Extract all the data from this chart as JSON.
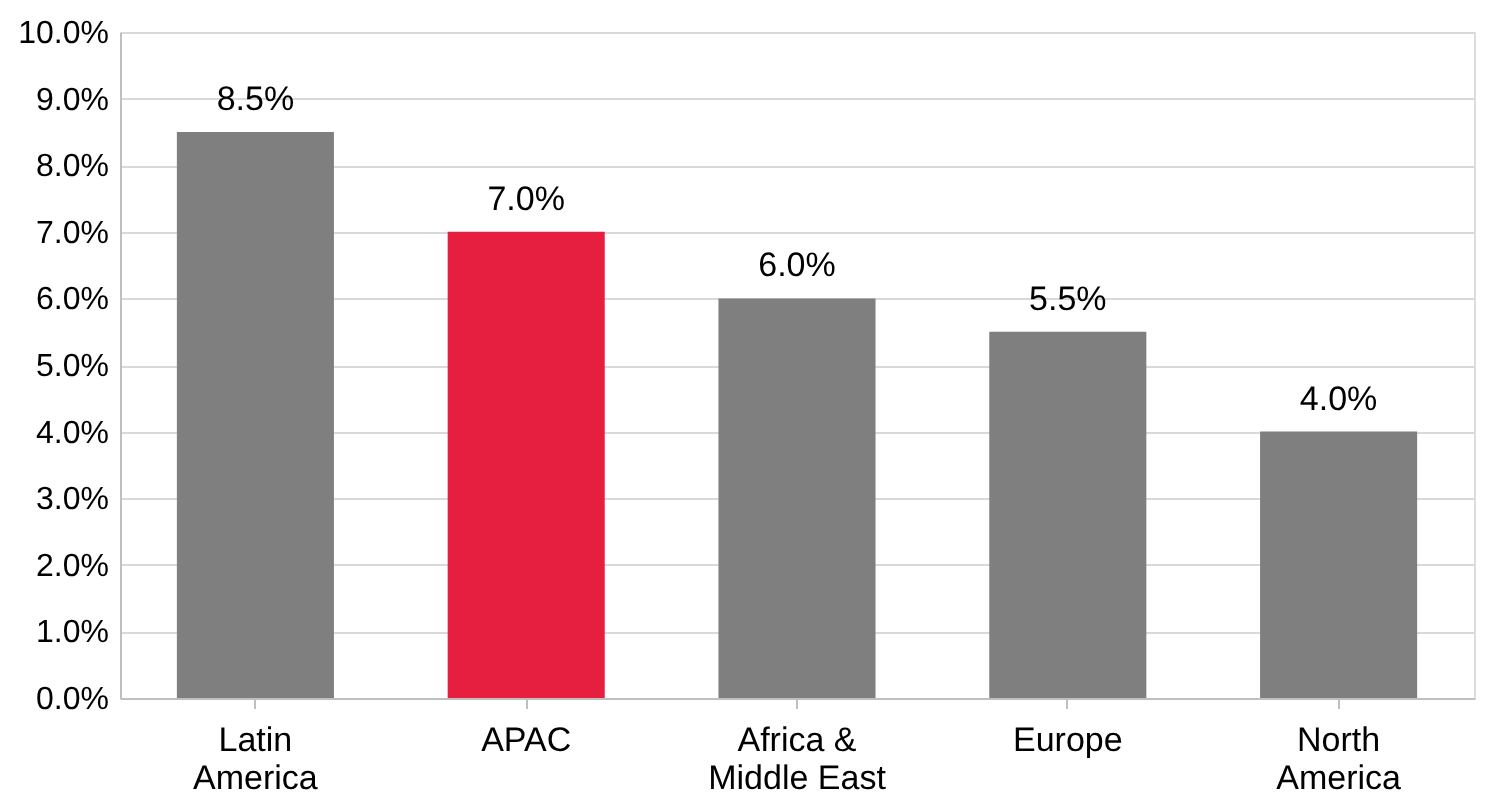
{
  "chart_data": {
    "type": "bar",
    "categories": [
      "Latin America",
      "APAC",
      "Africa & Middle East",
      "Europe",
      "North America"
    ],
    "values": [
      8.5,
      7.0,
      6.0,
      5.5,
      4.0
    ],
    "colors": [
      "#7f7f7f",
      "#e61e40",
      "#7f7f7f",
      "#7f7f7f",
      "#7f7f7f"
    ],
    "value_labels": [
      "8.5%",
      "7.0%",
      "6.0%",
      "5.5%",
      "4.0%"
    ],
    "ylim": [
      0,
      10
    ],
    "yticks": [
      {
        "value": 0,
        "label": "0.0%"
      },
      {
        "value": 1,
        "label": "1.0%"
      },
      {
        "value": 2,
        "label": "2.0%"
      },
      {
        "value": 3,
        "label": "3.0%"
      },
      {
        "value": 4,
        "label": "4.0%"
      },
      {
        "value": 5,
        "label": "5.0%"
      },
      {
        "value": 6,
        "label": "6.0%"
      },
      {
        "value": 7,
        "label": "7.0%"
      },
      {
        "value": 8,
        "label": "8.0%"
      },
      {
        "value": 9,
        "label": "9.0%"
      },
      {
        "value": 10,
        "label": "10.0%"
      }
    ],
    "grid": "y",
    "legend": false
  }
}
